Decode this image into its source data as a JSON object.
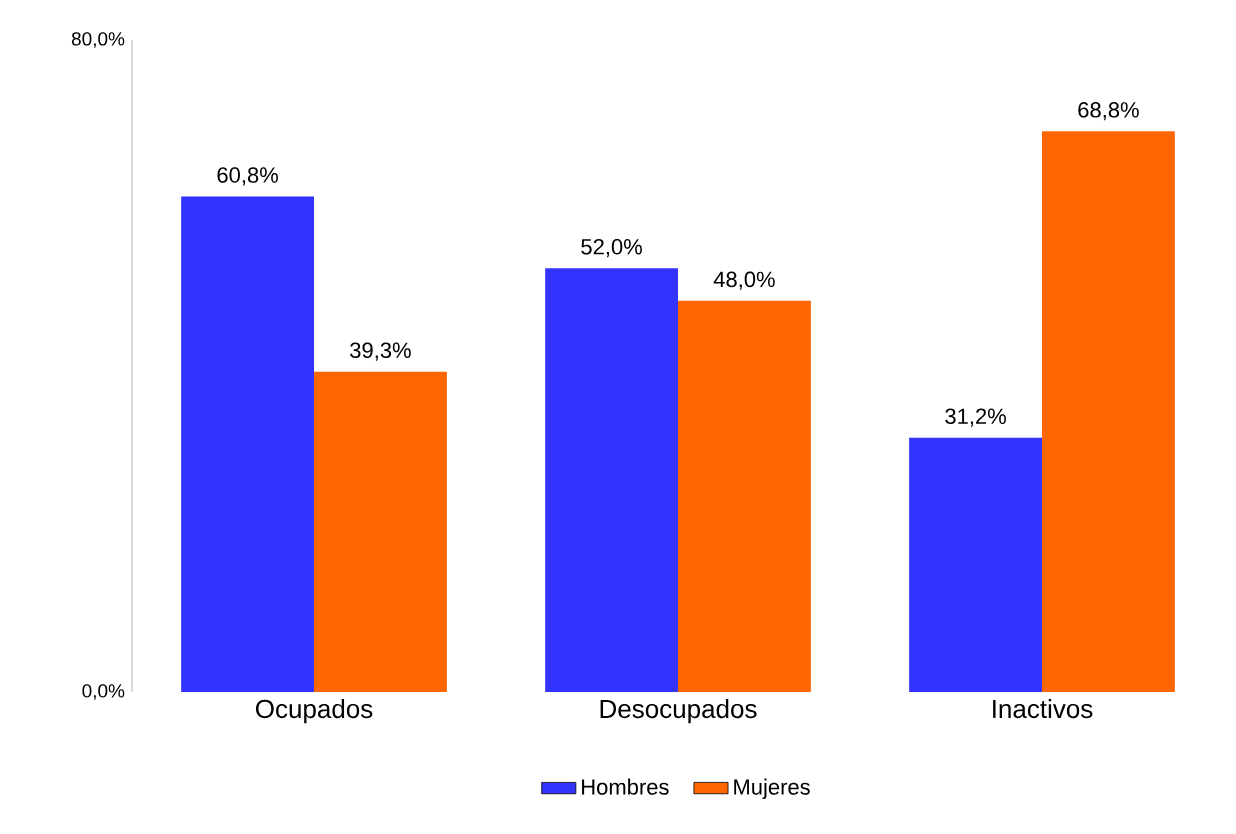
{
  "chart_data": {
    "type": "bar",
    "categories": [
      "Ocupados",
      "Desocupados",
      "Inactivos"
    ],
    "series": [
      {
        "name": "Hombres",
        "color": "#3333ff",
        "values": [
          60.8,
          52.0,
          31.2
        ],
        "value_labels": [
          "60,8%",
          "52,0%",
          "31,2%"
        ]
      },
      {
        "name": "Mujeres",
        "color": "#ff6600",
        "values": [
          39.3,
          48.0,
          68.8
        ],
        "value_labels": [
          "39,3%",
          "48,0%",
          "68,8%"
        ]
      }
    ],
    "ylim": [
      0,
      80
    ],
    "yticks": [
      {
        "value": 0,
        "label": "0,0%"
      },
      {
        "value": 80,
        "label": "80,0%"
      }
    ],
    "grid": false,
    "legend": "bottom"
  }
}
